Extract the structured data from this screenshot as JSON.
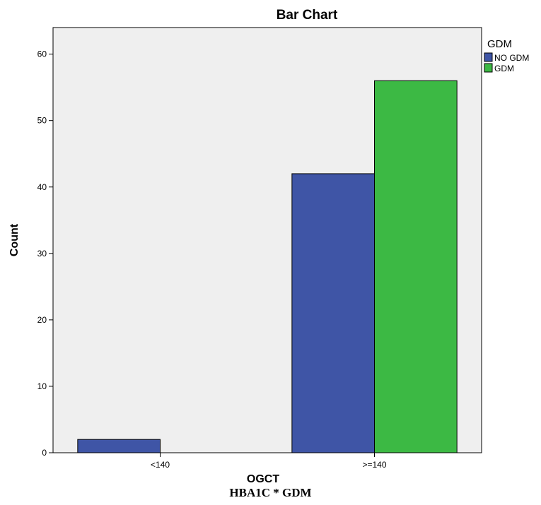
{
  "chart_data": {
    "type": "bar",
    "title": "Bar Chart",
    "xlabel": "OGCT",
    "ylabel": "Count",
    "categories": [
      "<140",
      ">=140"
    ],
    "series": [
      {
        "name": "NO GDM",
        "values": [
          2,
          42
        ],
        "color": "#3f55a6"
      },
      {
        "name": "GDM",
        "values": [
          0,
          56
        ],
        "color": "#3cb944"
      }
    ],
    "ylim": [
      0,
      64
    ],
    "yticks": [
      0,
      10,
      20,
      30,
      40,
      50,
      60
    ],
    "legend": {
      "title": "GDM",
      "position": "right"
    },
    "plot_background": "#efefef",
    "grid": false
  },
  "caption": "HBA1C * GDM"
}
